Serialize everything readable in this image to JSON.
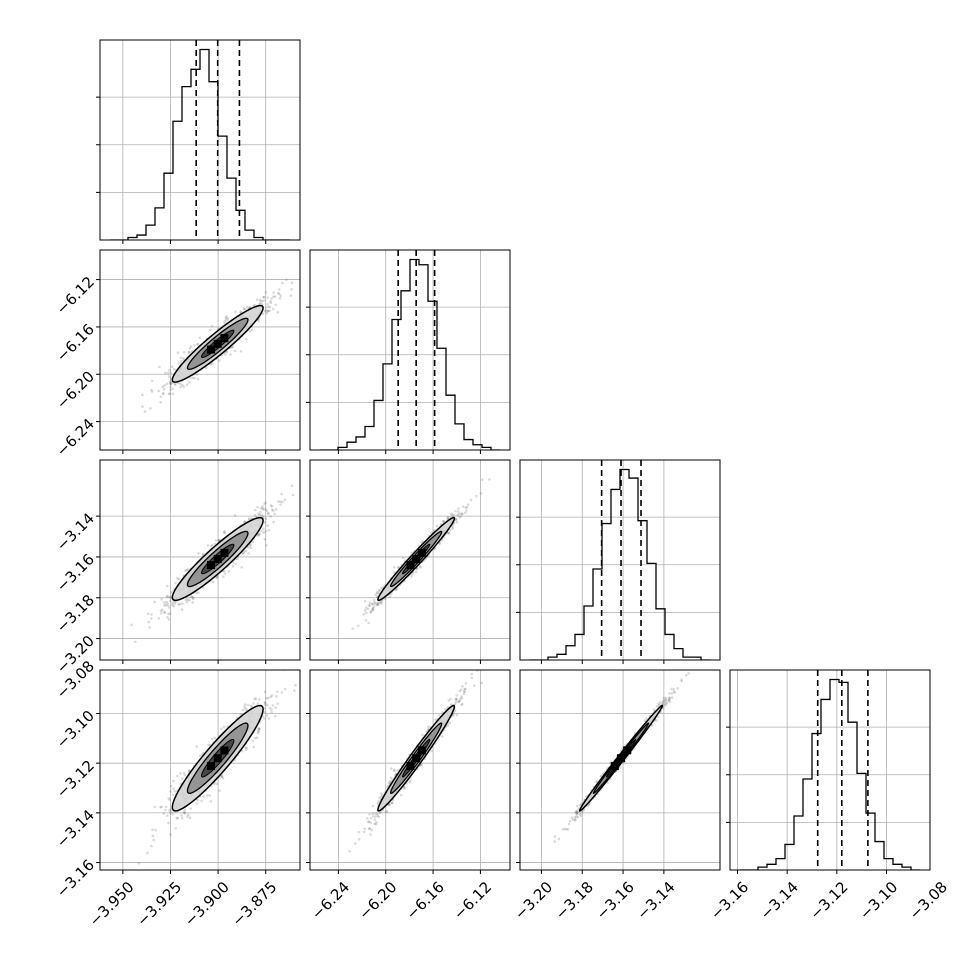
{
  "chart_data": {
    "type": "corner",
    "parameters": [
      {
        "range": [
          -3.962,
          -3.857
        ],
        "ticks": [
          "−3.950",
          "−3.925",
          "−3.900",
          "−3.875"
        ],
        "tick_values": [
          -3.95,
          -3.925,
          -3.9,
          -3.875
        ],
        "quantiles": [
          -3.9115,
          -3.9002,
          -3.8888
        ]
      },
      {
        "range": [
          -6.264,
          -6.095
        ],
        "ticks": [
          "−6.24",
          "−6.20",
          "−6.16",
          "−6.12"
        ],
        "tick_values": [
          -6.24,
          -6.2,
          -6.16,
          -6.12
        ],
        "quantiles": [
          -6.1895,
          -6.1743,
          -6.1587
        ]
      },
      {
        "range": [
          -3.2105,
          -3.1125
        ],
        "ticks": [
          "−3.20",
          "−3.18",
          "−3.16",
          "−3.14"
        ],
        "tick_values": [
          -3.2,
          -3.18,
          -3.16,
          -3.14
        ],
        "quantiles": [
          -3.1705,
          -3.161,
          -3.1512
        ]
      },
      {
        "range": [
          -3.163,
          -3.0825
        ],
        "ticks": [
          "−3.16",
          "−3.14",
          "−3.12",
          "−3.10",
          "−3.08"
        ],
        "tick_values": [
          -3.16,
          -3.14,
          -3.12,
          -3.1,
          -3.08
        ],
        "quantiles": [
          -3.1277,
          -3.118,
          -3.1075
        ]
      }
    ],
    "histograms": [
      [
        0,
        0,
        1,
        2,
        6,
        13,
        27,
        48,
        62,
        69,
        77,
        64,
        42,
        25,
        12,
        4,
        1,
        0,
        0,
        0
      ],
      [
        0,
        0,
        1,
        3,
        5,
        9,
        19,
        33,
        50,
        61,
        73,
        71,
        57,
        39,
        21,
        10,
        4,
        2,
        1,
        0
      ],
      [
        0,
        0,
        1,
        2,
        5,
        9,
        19,
        32,
        48,
        60,
        67,
        64,
        49,
        34,
        18,
        9,
        4,
        1,
        1,
        0
      ],
      [
        0,
        0,
        1,
        2,
        4,
        9,
        19,
        32,
        48,
        60,
        67,
        66,
        52,
        34,
        20,
        10,
        4,
        2,
        1,
        0
      ]
    ],
    "correlation": [
      [
        1.0,
        0.94,
        0.93,
        0.93
      ],
      [
        0.94,
        1.0,
        0.98,
        0.98
      ],
      [
        0.93,
        0.98,
        1.0,
        0.995
      ],
      [
        0.93,
        0.98,
        0.995,
        1.0
      ]
    ],
    "grid": true,
    "colors": {
      "line": "#000000",
      "contour_fill_outer": "#d6d6d6",
      "contour_fill_mid": "#8a8a8a",
      "contour_fill_inner": "#3a3a3a",
      "scatter": "#555555",
      "grid": "#b0b0b0"
    }
  }
}
